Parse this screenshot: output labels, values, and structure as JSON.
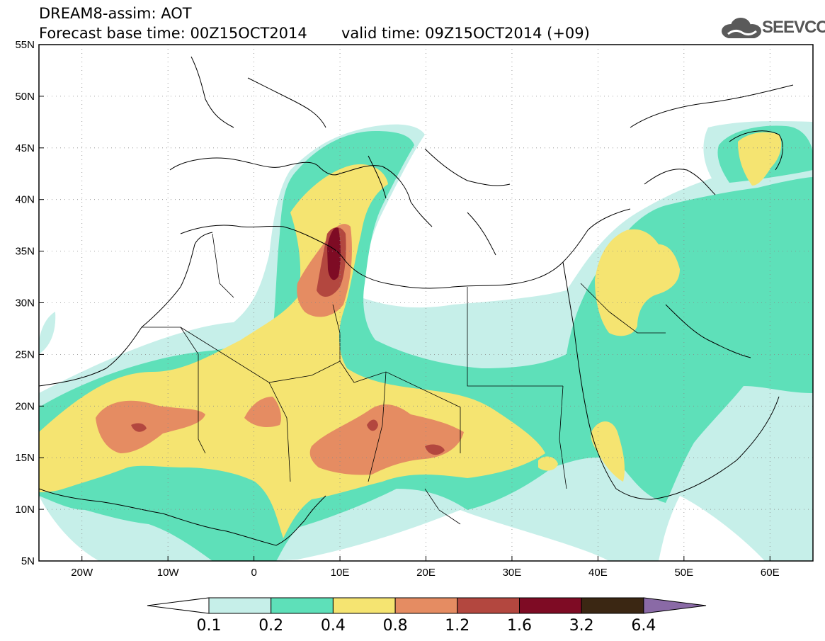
{
  "header": {
    "model_line": "DREAM8-assim: AOT",
    "base_time": "Forecast base time: 00Z15OCT2014",
    "valid_time": "valid time: 09Z15OCT2014 (+09)",
    "logo_text": "SEEVCCC",
    "logo_icon": "cloud-logo-icon"
  },
  "map": {
    "lon_range": [
      -25,
      65
    ],
    "lat_range": [
      5,
      55
    ],
    "lon_ticks": [
      {
        "value": -20,
        "label": "20W"
      },
      {
        "value": -10,
        "label": "10W"
      },
      {
        "value": 0,
        "label": "0"
      },
      {
        "value": 10,
        "label": "10E"
      },
      {
        "value": 20,
        "label": "20E"
      },
      {
        "value": 30,
        "label": "30E"
      },
      {
        "value": 40,
        "label": "40E"
      },
      {
        "value": 50,
        "label": "50E"
      },
      {
        "value": 60,
        "label": "60E"
      }
    ],
    "lat_ticks": [
      {
        "value": 5,
        "label": "5N"
      },
      {
        "value": 10,
        "label": "10N"
      },
      {
        "value": 15,
        "label": "15N"
      },
      {
        "value": 20,
        "label": "20N"
      },
      {
        "value": 25,
        "label": "25N"
      },
      {
        "value": 30,
        "label": "30N"
      },
      {
        "value": 35,
        "label": "35N"
      },
      {
        "value": 40,
        "label": "40N"
      },
      {
        "value": 45,
        "label": "45N"
      },
      {
        "value": 50,
        "label": "50N"
      },
      {
        "value": 55,
        "label": "55N"
      }
    ],
    "grid": "dotted"
  },
  "colorbar": {
    "labels": [
      "0.1",
      "0.2",
      "0.4",
      "0.8",
      "1.2",
      "1.6",
      "3.2",
      "6.4"
    ],
    "colors": {
      "under": "#ffffff",
      "c1": "#c6efe9",
      "c2": "#5ee0b9",
      "c3": "#f5e471",
      "c4": "#e58c62",
      "c5": "#b3473f",
      "c6": "#7e0b24",
      "c7": "#3b2713",
      "over": "#8a6aa6"
    }
  }
}
